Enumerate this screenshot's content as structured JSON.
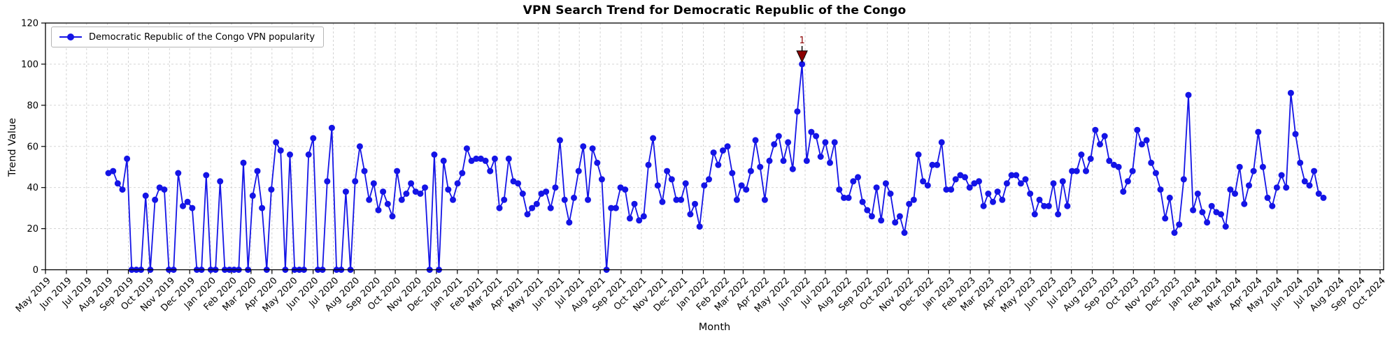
{
  "figure": {
    "title": "VPN Search Trend for Democratic Republic of the Congo",
    "xlabel": "Month",
    "ylabel": "Trend Value",
    "legend_label": "Democratic Republic of the Congo VPN popularity",
    "background": "#ffffff"
  },
  "chart_data": {
    "type": "line",
    "title": "VPN Search Trend for Democratic Republic of the Congo",
    "xlabel": "Month",
    "ylabel": "Trend Value",
    "ylim": [
      0,
      120
    ],
    "yticks": [
      0,
      20,
      40,
      60,
      80,
      100,
      120
    ],
    "grid": true,
    "grid_style": "dashed",
    "grid_color": "#cfcfcf",
    "legend_position": "upper left",
    "xtick_labels": [
      "May 2019",
      "Jun 2019",
      "Jul 2019",
      "Aug 2019",
      "Sep 2019",
      "Oct 2019",
      "Nov 2019",
      "Dec 2019",
      "Jan 2020",
      "Feb 2020",
      "Mar 2020",
      "Apr 2020",
      "May 2020",
      "Jun 2020",
      "Jul 2020",
      "Aug 2020",
      "Sep 2020",
      "Oct 2020",
      "Nov 2020",
      "Dec 2020",
      "Jan 2021",
      "Feb 2021",
      "Mar 2021",
      "Apr 2021",
      "May 2021",
      "Jun 2021",
      "Jul 2021",
      "Aug 2021",
      "Sep 2021",
      "Oct 2021",
      "Nov 2021",
      "Dec 2021",
      "Jan 2022",
      "Feb 2022",
      "Mar 2022",
      "Apr 2022",
      "May 2022",
      "Jun 2022",
      "Jul 2022",
      "Aug 2022",
      "Sep 2022",
      "Oct 2022",
      "Nov 2022",
      "Dec 2022",
      "Jan 2023",
      "Feb 2023",
      "Mar 2023",
      "Apr 2023",
      "May 2023",
      "Jun 2023",
      "Jul 2023",
      "Aug 2023",
      "Sep 2023",
      "Oct 2023",
      "Nov 2023",
      "Dec 2023",
      "Jan 2024",
      "Feb 2024",
      "Mar 2024",
      "Apr 2024",
      "May 2024",
      "Jun 2024",
      "Jul 2024",
      "Aug 2024",
      "Sep 2024",
      "Oct 2024"
    ],
    "series": [
      {
        "name": "Democratic Republic of the Congo VPN popularity",
        "color": "#1414e6",
        "marker": "o",
        "frequency": "weekly",
        "start_date": "2019-08-04",
        "end_date": "2024-08-04",
        "values": [
          47,
          48,
          42,
          39,
          54,
          0,
          0,
          0,
          36,
          0,
          34,
          40,
          39,
          0,
          0,
          47,
          31,
          33,
          30,
          0,
          0,
          46,
          0,
          0,
          43,
          0,
          0,
          0,
          0,
          52,
          0,
          36,
          48,
          30,
          0,
          39,
          62,
          58,
          0,
          56,
          0,
          0,
          0,
          56,
          64,
          0,
          0,
          43,
          69,
          0,
          0,
          38,
          0,
          43,
          60,
          48,
          34,
          42,
          29,
          38,
          32,
          26,
          48,
          34,
          37,
          42,
          38,
          37,
          40,
          0,
          56,
          0,
          53,
          39,
          34,
          42,
          47,
          59,
          53,
          54,
          54,
          53,
          48,
          54,
          30,
          34,
          54,
          43,
          42,
          37,
          27,
          30,
          32,
          37,
          38,
          30,
          40,
          63,
          34,
          23,
          35,
          48,
          60,
          34,
          59,
          52,
          44,
          0,
          30,
          30,
          40,
          39,
          25,
          32,
          24,
          26,
          51,
          64,
          41,
          33,
          48,
          44,
          34,
          34,
          42,
          27,
          32,
          21,
          41,
          44,
          57,
          51,
          58,
          60,
          47,
          34,
          41,
          39,
          48,
          63,
          50,
          34,
          53,
          61,
          65,
          53,
          62,
          49,
          77,
          100,
          53,
          67,
          65,
          55,
          62,
          52,
          62,
          39,
          35,
          35,
          43,
          45,
          33,
          29,
          26,
          40,
          24,
          42,
          37,
          23,
          26,
          18,
          32,
          34,
          56,
          43,
          41,
          51,
          51,
          62,
          39,
          39,
          44,
          46,
          45,
          40,
          42,
          43,
          31,
          37,
          33,
          38,
          34,
          42,
          46,
          46,
          42,
          44,
          37,
          27,
          34,
          31,
          31,
          42,
          27,
          43,
          31,
          48,
          48,
          56,
          48,
          54,
          68,
          61,
          65,
          53,
          51,
          50,
          38,
          43,
          48,
          68,
          61,
          63,
          52,
          47,
          39,
          25,
          35,
          18,
          22,
          44,
          85,
          29,
          37,
          28,
          23,
          31,
          28,
          27,
          21,
          39,
          37,
          50,
          32,
          41,
          48,
          67,
          50,
          35,
          31,
          40,
          46,
          40,
          86,
          66,
          52,
          43,
          41,
          48,
          37,
          35
        ]
      }
    ],
    "annotation": {
      "text": "1",
      "color": "#8b0000",
      "index": 149,
      "value": 100,
      "date": "2022-06"
    }
  }
}
